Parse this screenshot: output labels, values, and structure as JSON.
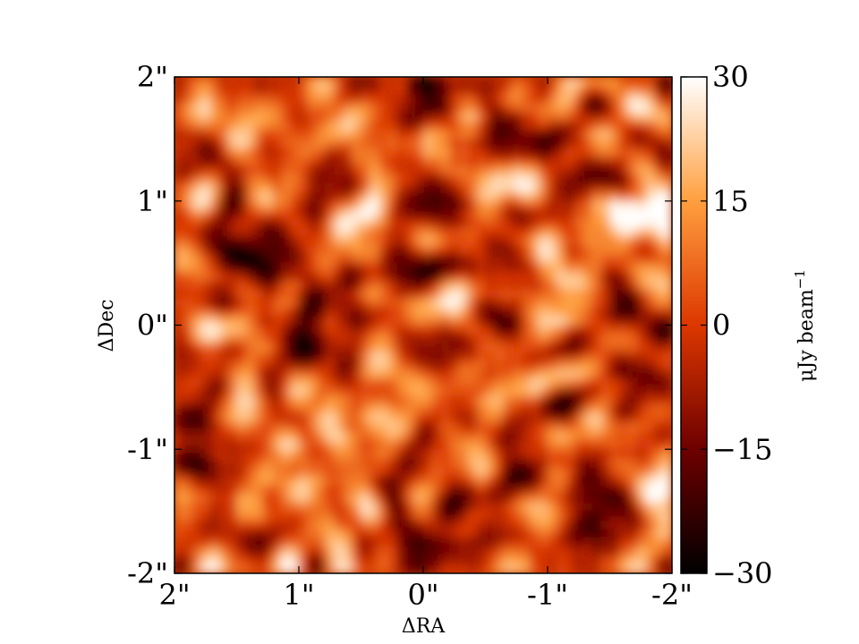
{
  "chart_data": {
    "type": "heatmap",
    "title": "",
    "xlabel": "ΔRA",
    "ylabel": "ΔDec",
    "xlim": [
      2,
      -2
    ],
    "ylim": [
      -2,
      2
    ],
    "x_ticks": [
      {
        "value": 2,
        "label": "2\""
      },
      {
        "value": 1,
        "label": "1\""
      },
      {
        "value": 0,
        "label": "0\""
      },
      {
        "value": -1,
        "label": "-1\""
      },
      {
        "value": -2,
        "label": "-2\""
      }
    ],
    "y_ticks": [
      {
        "value": 2,
        "label": "2\""
      },
      {
        "value": 1,
        "label": "1\""
      },
      {
        "value": 0,
        "label": "0\""
      },
      {
        "value": -1,
        "label": "-1\""
      },
      {
        "value": -2,
        "label": "-2\""
      }
    ],
    "colorbar": {
      "label": "μJy beam",
      "label_superscript": "−1",
      "range": [
        -30,
        30
      ],
      "ticks": [
        {
          "value": 30,
          "label": "30"
        },
        {
          "value": 15,
          "label": "15"
        },
        {
          "value": 0,
          "label": "0"
        },
        {
          "value": -15,
          "label": "−15"
        },
        {
          "value": -30,
          "label": "−30"
        }
      ],
      "colormap": "gist_heat",
      "colors": [
        "#000000",
        "#6e0000",
        "#dc3700",
        "#ff9f3f",
        "#ffffff"
      ]
    },
    "grid": false,
    "pixel_map": {
      "description_of_content": "noise map",
      "value_range": [
        -30,
        30
      ]
    }
  }
}
